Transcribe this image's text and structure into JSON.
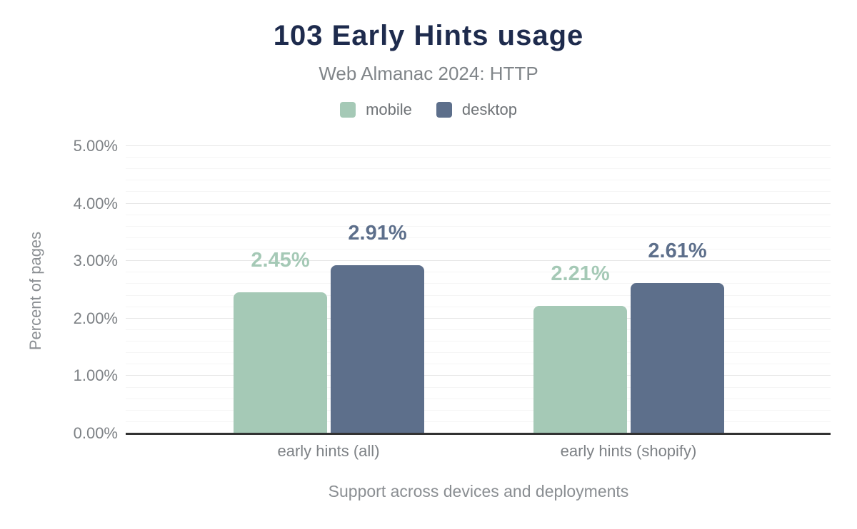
{
  "header": {
    "title": "103 Early Hints usage",
    "subtitle": "Web Almanac 2024: HTTP"
  },
  "legend": [
    {
      "label": "mobile",
      "color": "#a5c9b6"
    },
    {
      "label": "desktop",
      "color": "#5d6f8b"
    }
  ],
  "chart_data": {
    "type": "bar",
    "title": "103 Early Hints usage",
    "subtitle": "Web Almanac 2024: HTTP",
    "categories": [
      "early hints (all)",
      "early hints (shopify)"
    ],
    "series": [
      {
        "name": "mobile",
        "color": "#a5c9b6",
        "values": [
          2.45,
          2.21
        ],
        "labels": [
          "2.45%",
          "2.21%"
        ]
      },
      {
        "name": "desktop",
        "color": "#5d6f8b",
        "values": [
          2.91,
          2.61
        ],
        "labels": [
          "2.91%",
          "2.61%"
        ]
      }
    ],
    "xlabel": "Support across devices and deployments",
    "ylabel": "Percent of pages",
    "ylim": [
      0,
      5
    ],
    "y_ticks": [
      "0.00%",
      "1.00%",
      "2.00%",
      "3.00%",
      "4.00%",
      "5.00%"
    ],
    "y_minor_step": 0.2,
    "grid": "horizontal-major-and-minor",
    "legend_position": "top",
    "value_labels_shown": true
  },
  "colors": {
    "title": "#1e2b4d",
    "subtitle": "#808589",
    "axis_text": "#7d8185",
    "axis_title_text": "#8a8e92",
    "legend_text": "#6e7276",
    "grid_major": "#e6e6e6",
    "grid_minor": "#f5f5f5",
    "axis_line": "#323232",
    "background": "#ffffff"
  }
}
